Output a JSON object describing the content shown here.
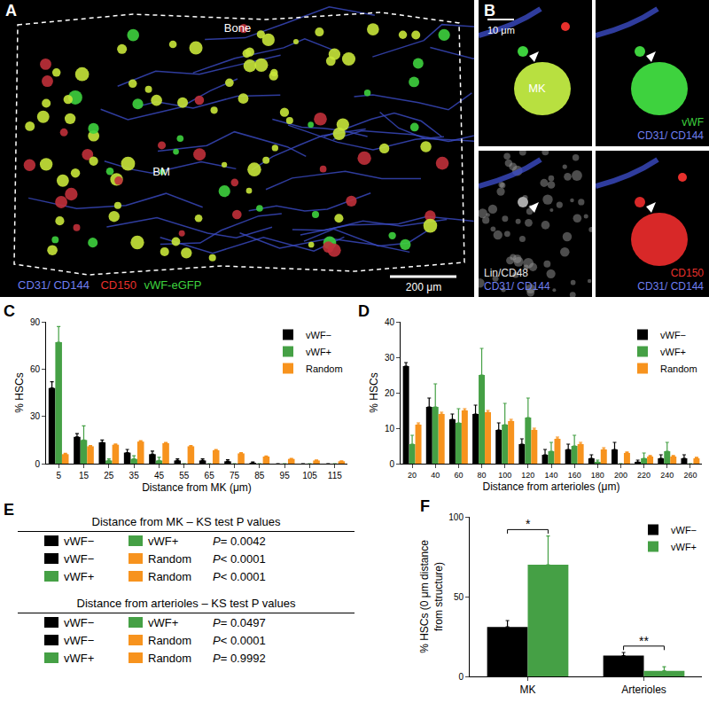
{
  "chart_data": [
    {
      "panel": "C",
      "type": "bar",
      "x": [
        5,
        15,
        25,
        35,
        45,
        55,
        65,
        75,
        85,
        95,
        105,
        115
      ],
      "series": [
        {
          "name": "vWF−",
          "color": "#000000",
          "values": [
            48,
            17,
            13.5,
            7,
            6,
            2,
            2,
            1.5,
            0.5,
            0,
            0,
            0
          ],
          "errors": [
            4,
            2,
            1.5,
            2,
            2,
            1,
            1,
            1,
            0.5,
            0,
            0,
            0
          ]
        },
        {
          "name": "vWF+",
          "color": "#45a045",
          "values": [
            77,
            15,
            2,
            3,
            2,
            0,
            0,
            0,
            0,
            0,
            0,
            0
          ],
          "errors": [
            10,
            9,
            1,
            2,
            2,
            0,
            0,
            0,
            0,
            0,
            0,
            0
          ]
        },
        {
          "name": "Random",
          "color": "#f7931e",
          "values": [
            6,
            11,
            12,
            14,
            13,
            11,
            8.5,
            6.5,
            4.5,
            3,
            2,
            1.5
          ],
          "errors": [
            0.5,
            0.5,
            0.5,
            0.5,
            0.5,
            0.5,
            0.5,
            0.5,
            0.3,
            0.3,
            0.3,
            0.3
          ]
        }
      ],
      "xlabel": "Distance from MK (μm)",
      "ylabel": "% HSCs",
      "xlim": [
        0,
        120
      ],
      "xticks": [
        5,
        15,
        25,
        35,
        45,
        55,
        65,
        75,
        85,
        95,
        105,
        115
      ],
      "ylim": [
        0,
        90
      ],
      "yticks": [
        0,
        30,
        60,
        90
      ],
      "legend": "upper right"
    },
    {
      "panel": "D",
      "type": "bar",
      "x": [
        20,
        40,
        60,
        80,
        100,
        120,
        140,
        160,
        180,
        200,
        220,
        240,
        260
      ],
      "series": [
        {
          "name": "vWF−",
          "color": "#000000",
          "values": [
            27.5,
            16,
            12.5,
            14,
            9.5,
            5.5,
            2.5,
            4,
            1.5,
            4,
            0.5,
            1.5,
            1.5
          ],
          "errors": [
            1,
            2.5,
            1.5,
            2.5,
            2,
            1.5,
            1.5,
            1.5,
            1,
            2,
            0.5,
            1,
            1
          ]
        },
        {
          "name": "vWF+",
          "color": "#45a045",
          "values": [
            5.5,
            16,
            11.5,
            25,
            11,
            13,
            3.5,
            5,
            0.5,
            0,
            1.5,
            3.5,
            0
          ],
          "errors": [
            2.5,
            6.5,
            4,
            7.5,
            6,
            5.5,
            2.5,
            3,
            0.5,
            0,
            1.5,
            2.5,
            0
          ]
        },
        {
          "name": "Random",
          "color": "#f7931e",
          "values": [
            11,
            14,
            15,
            14.5,
            12,
            9.5,
            7,
            5.5,
            4,
            3,
            2,
            2,
            1.5
          ],
          "errors": [
            0.5,
            0.5,
            0.5,
            0.5,
            0.5,
            0.5,
            0.5,
            0.5,
            0.5,
            0.3,
            0.3,
            0.3,
            0.3
          ]
        }
      ],
      "xlabel": "Distance from arterioles (μm)",
      "ylabel": "% HSCs",
      "xlim": [
        10,
        270
      ],
      "xticks": [
        20,
        40,
        60,
        80,
        100,
        120,
        140,
        160,
        180,
        200,
        220,
        240,
        260
      ],
      "ylim": [
        0,
        40
      ],
      "yticks": [
        0,
        10,
        20,
        30,
        40
      ],
      "legend": "upper right"
    },
    {
      "panel": "F",
      "type": "bar",
      "categories": [
        "MK",
        "Arterioles"
      ],
      "series": [
        {
          "name": "vWF−",
          "color": "#000000",
          "values": [
            31,
            13
          ],
          "errors": [
            4,
            2
          ]
        },
        {
          "name": "vWF+",
          "color": "#45a045",
          "values": [
            70,
            3.5
          ],
          "errors": [
            18,
            2.5
          ]
        }
      ],
      "ylabel": "% HSCs (0 μm distance from structure)",
      "ylim": [
        0,
        100
      ],
      "yticks": [
        0,
        50,
        100
      ],
      "legend": "upper right",
      "annotations": [
        {
          "category": "MK",
          "text": "*"
        },
        {
          "category": "Arterioles",
          "text": "**"
        }
      ]
    }
  ],
  "images": [
    {
      "panel": "A",
      "top_label": "Bone",
      "center_label": "BM",
      "scale_bar": "200 μm",
      "stains": [
        {
          "text": "CD31/ CD144",
          "color": "#6f7ff0"
        },
        {
          "text": "CD150",
          "color": "#e8302c"
        },
        {
          "text": "vWF-eGFP",
          "color": "#3ed23e"
        }
      ]
    },
    {
      "panel": "B",
      "scale_bar": "10 μm",
      "cell_label": "MK",
      "quadrants": [
        [],
        [
          {
            "text": "vWF",
            "color": "#3ed23e"
          },
          {
            "text": "CD31/ CD144",
            "color": "#6f7ff0"
          }
        ],
        [
          {
            "text": "Lin/CD48",
            "color": "#e6e6e6"
          },
          {
            "text": "CD31/ CD144",
            "color": "#6f7ff0"
          }
        ],
        [
          {
            "text": "CD150",
            "color": "#e8302c"
          },
          {
            "text": "CD31/ CD144",
            "color": "#6f7ff0"
          }
        ]
      ]
    }
  ],
  "table": {
    "panel": "E",
    "colors": {
      "vWF−": "#000000",
      "vWF+": "#45a045",
      "Random": "#f7931e"
    },
    "sections": [
      {
        "title": "Distance from MK – KS test P values",
        "rows": [
          [
            "vWF−",
            "vWF+",
            "P = 0.0042"
          ],
          [
            "vWF−",
            "Random",
            "P < 0.0001"
          ],
          [
            "vWF+",
            "Random",
            "P < 0.0001"
          ]
        ]
      },
      {
        "title": "Distance from arterioles – KS test P values",
        "rows": [
          [
            "vWF−",
            "vWF+",
            "P = 0.0497"
          ],
          [
            "vWF−",
            "Random",
            "P < 0.0001"
          ],
          [
            "vWF+",
            "Random",
            "P = 0.9992"
          ]
        ]
      }
    ]
  }
}
